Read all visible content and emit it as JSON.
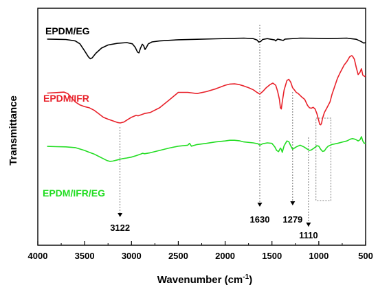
{
  "chart_data": {
    "type": "line",
    "xlabel": "Wavenumber (cm",
    "xlabel_sup": "-1",
    "xlabel_close": ")",
    "ylabel": "Transmittance",
    "xlim": [
      4000,
      500
    ],
    "x_reversed": true,
    "xticks": [
      "4000",
      "3500",
      "3000",
      "2500",
      "2000",
      "1500",
      "1000",
      "500"
    ],
    "y_ticks_shown": false,
    "grid": false,
    "series": [
      {
        "name": "EPDM/EG",
        "color": "#000000",
        "points": [
          [
            3900,
            0.87
          ],
          [
            3800,
            0.869
          ],
          [
            3700,
            0.868
          ],
          [
            3600,
            0.862
          ],
          [
            3550,
            0.85
          ],
          [
            3500,
            0.82
          ],
          [
            3460,
            0.795
          ],
          [
            3440,
            0.787
          ],
          [
            3420,
            0.79
          ],
          [
            3380,
            0.81
          ],
          [
            3320,
            0.832
          ],
          [
            3250,
            0.845
          ],
          [
            3150,
            0.852
          ],
          [
            3050,
            0.855
          ],
          [
            2990,
            0.85
          ],
          [
            2960,
            0.835
          ],
          [
            2935,
            0.815
          ],
          [
            2920,
            0.812
          ],
          [
            2905,
            0.83
          ],
          [
            2885,
            0.848
          ],
          [
            2870,
            0.842
          ],
          [
            2855,
            0.826
          ],
          [
            2840,
            0.835
          ],
          [
            2820,
            0.85
          ],
          [
            2780,
            0.858
          ],
          [
            2700,
            0.862
          ],
          [
            2500,
            0.867
          ],
          [
            2300,
            0.869
          ],
          [
            2100,
            0.871
          ],
          [
            1900,
            0.873
          ],
          [
            1800,
            0.874
          ],
          [
            1700,
            0.872
          ],
          [
            1660,
            0.866
          ],
          [
            1640,
            0.857
          ],
          [
            1620,
            0.86
          ],
          [
            1600,
            0.868
          ],
          [
            1550,
            0.872
          ],
          [
            1470,
            0.866
          ],
          [
            1460,
            0.862
          ],
          [
            1440,
            0.87
          ],
          [
            1380,
            0.864
          ],
          [
            1360,
            0.87
          ],
          [
            1200,
            0.874
          ],
          [
            1000,
            0.873
          ],
          [
            900,
            0.872
          ],
          [
            800,
            0.873
          ],
          [
            700,
            0.874
          ],
          [
            600,
            0.869
          ],
          [
            550,
            0.86
          ],
          [
            520,
            0.853
          ],
          [
            500,
            0.855
          ]
        ]
      },
      {
        "name": "EPDM/IFR",
        "color": "#e8212a",
        "points": [
          [
            3900,
            0.642
          ],
          [
            3800,
            0.644
          ],
          [
            3720,
            0.646
          ],
          [
            3680,
            0.64
          ],
          [
            3640,
            0.622
          ],
          [
            3600,
            0.605
          ],
          [
            3550,
            0.592
          ],
          [
            3500,
            0.585
          ],
          [
            3450,
            0.58
          ],
          [
            3400,
            0.57
          ],
          [
            3350,
            0.555
          ],
          [
            3300,
            0.54
          ],
          [
            3250,
            0.532
          ],
          [
            3200,
            0.525
          ],
          [
            3150,
            0.518
          ],
          [
            3120,
            0.516
          ],
          [
            3080,
            0.52
          ],
          [
            3040,
            0.53
          ],
          [
            3000,
            0.54
          ],
          [
            2950,
            0.548
          ],
          [
            2930,
            0.546
          ],
          [
            2900,
            0.55
          ],
          [
            2860,
            0.556
          ],
          [
            2800,
            0.56
          ],
          [
            2700,
            0.58
          ],
          [
            2600,
            0.612
          ],
          [
            2500,
            0.645
          ],
          [
            2400,
            0.645
          ],
          [
            2300,
            0.64
          ],
          [
            2200,
            0.648
          ],
          [
            2100,
            0.66
          ],
          [
            2000,
            0.675
          ],
          [
            1950,
            0.68
          ],
          [
            1900,
            0.681
          ],
          [
            1850,
            0.678
          ],
          [
            1800,
            0.672
          ],
          [
            1750,
            0.665
          ],
          [
            1700,
            0.656
          ],
          [
            1660,
            0.645
          ],
          [
            1630,
            0.638
          ],
          [
            1600,
            0.648
          ],
          [
            1560,
            0.665
          ],
          [
            1520,
            0.678
          ],
          [
            1490,
            0.684
          ],
          [
            1460,
            0.675
          ],
          [
            1440,
            0.65
          ],
          [
            1420,
            0.615
          ],
          [
            1410,
            0.58
          ],
          [
            1400,
            0.575
          ],
          [
            1390,
            0.605
          ],
          [
            1370,
            0.655
          ],
          [
            1340,
            0.695
          ],
          [
            1320,
            0.7
          ],
          [
            1300,
            0.688
          ],
          [
            1280,
            0.665
          ],
          [
            1260,
            0.655
          ],
          [
            1240,
            0.645
          ],
          [
            1220,
            0.64
          ],
          [
            1180,
            0.625
          ],
          [
            1150,
            0.615
          ],
          [
            1120,
            0.59
          ],
          [
            1100,
            0.58
          ],
          [
            1080,
            0.578
          ],
          [
            1060,
            0.582
          ],
          [
            1040,
            0.575
          ],
          [
            1020,
            0.555
          ],
          [
            1000,
            0.525
          ],
          [
            990,
            0.51
          ],
          [
            980,
            0.508
          ],
          [
            970,
            0.515
          ],
          [
            960,
            0.535
          ],
          [
            940,
            0.56
          ],
          [
            920,
            0.575
          ],
          [
            900,
            0.59
          ],
          [
            880,
            0.605
          ],
          [
            860,
            0.635
          ],
          [
            830,
            0.67
          ],
          [
            800,
            0.705
          ],
          [
            770,
            0.73
          ],
          [
            730,
            0.76
          ],
          [
            700,
            0.775
          ],
          [
            670,
            0.795
          ],
          [
            650,
            0.8
          ],
          [
            640,
            0.798
          ],
          [
            620,
            0.785
          ],
          [
            600,
            0.75
          ],
          [
            580,
            0.72
          ],
          [
            560,
            0.73
          ],
          [
            545,
            0.745
          ],
          [
            530,
            0.718
          ],
          [
            510,
            0.712
          ],
          [
            500,
            0.716
          ]
        ]
      },
      {
        "name": "EPDM/IFR/EG",
        "color": "#22dd22",
        "points": [
          [
            3900,
            0.417
          ],
          [
            3800,
            0.416
          ],
          [
            3700,
            0.415
          ],
          [
            3600,
            0.412
          ],
          [
            3500,
            0.4
          ],
          [
            3450,
            0.392
          ],
          [
            3400,
            0.385
          ],
          [
            3350,
            0.375
          ],
          [
            3300,
            0.365
          ],
          [
            3260,
            0.357
          ],
          [
            3230,
            0.354
          ],
          [
            3200,
            0.355
          ],
          [
            3150,
            0.36
          ],
          [
            3100,
            0.365
          ],
          [
            3050,
            0.368
          ],
          [
            3000,
            0.372
          ],
          [
            2950,
            0.378
          ],
          [
            2900,
            0.385
          ],
          [
            2880,
            0.388
          ],
          [
            2860,
            0.386
          ],
          [
            2800,
            0.39
          ],
          [
            2700,
            0.4
          ],
          [
            2600,
            0.41
          ],
          [
            2500,
            0.418
          ],
          [
            2400,
            0.422
          ],
          [
            2380,
            0.43
          ],
          [
            2360,
            0.418
          ],
          [
            2300,
            0.425
          ],
          [
            2200,
            0.43
          ],
          [
            2100,
            0.436
          ],
          [
            2000,
            0.44
          ],
          [
            1950,
            0.443
          ],
          [
            1900,
            0.443
          ],
          [
            1850,
            0.441
          ],
          [
            1800,
            0.436
          ],
          [
            1700,
            0.432
          ],
          [
            1650,
            0.428
          ],
          [
            1630,
            0.422
          ],
          [
            1600,
            0.428
          ],
          [
            1550,
            0.432
          ],
          [
            1500,
            0.43
          ],
          [
            1470,
            0.415
          ],
          [
            1450,
            0.4
          ],
          [
            1430,
            0.395
          ],
          [
            1410,
            0.41
          ],
          [
            1400,
            0.405
          ],
          [
            1390,
            0.392
          ],
          [
            1370,
            0.42
          ],
          [
            1340,
            0.44
          ],
          [
            1320,
            0.437
          ],
          [
            1300,
            0.42
          ],
          [
            1280,
            0.405
          ],
          [
            1260,
            0.41
          ],
          [
            1240,
            0.415
          ],
          [
            1200,
            0.422
          ],
          [
            1160,
            0.415
          ],
          [
            1120,
            0.405
          ],
          [
            1100,
            0.4
          ],
          [
            1080,
            0.402
          ],
          [
            1050,
            0.41
          ],
          [
            1020,
            0.42
          ],
          [
            1000,
            0.418
          ],
          [
            980,
            0.405
          ],
          [
            960,
            0.396
          ],
          [
            940,
            0.398
          ],
          [
            920,
            0.41
          ],
          [
            900,
            0.418
          ],
          [
            860,
            0.425
          ],
          [
            800,
            0.43
          ],
          [
            750,
            0.435
          ],
          [
            700,
            0.44
          ],
          [
            660,
            0.448
          ],
          [
            640,
            0.45
          ],
          [
            620,
            0.448
          ],
          [
            600,
            0.445
          ],
          [
            580,
            0.44
          ],
          [
            560,
            0.445
          ],
          [
            545,
            0.458
          ],
          [
            530,
            0.44
          ],
          [
            515,
            0.43
          ],
          [
            500,
            0.432
          ]
        ]
      }
    ],
    "annotations": [
      {
        "label": "3122",
        "x": 3122
      },
      {
        "label": "1630",
        "x": 1630
      },
      {
        "label": "1279",
        "x": 1279
      },
      {
        "label": "1110",
        "x": 1110
      }
    ],
    "highlight_box": {
      "x": [
        1030,
        870
      ]
    }
  }
}
